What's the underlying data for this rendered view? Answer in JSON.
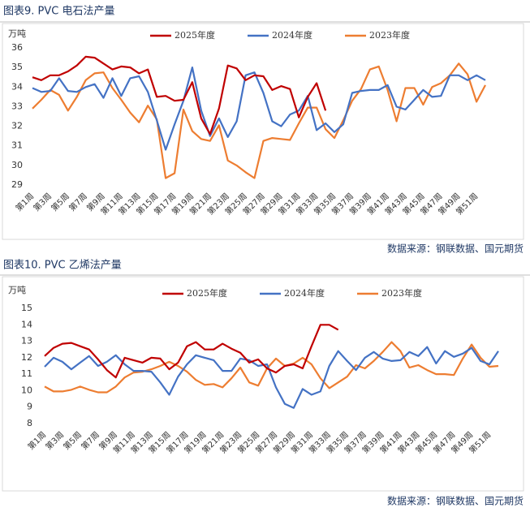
{
  "chart_data": [
    {
      "type": "line",
      "title": "图表9. PVC 电石法产量",
      "y_label": "万吨",
      "source": "数据来源：钢联数据、国元期货",
      "categories": [
        "第1周",
        null,
        "第3周",
        null,
        "第5周",
        null,
        "第7周",
        null,
        "第9周",
        null,
        "第11周",
        null,
        "第13周",
        null,
        "第15周",
        null,
        "第17周",
        null,
        "第19周",
        null,
        "第21周",
        null,
        "第23周",
        null,
        "第25周",
        null,
        "第27周",
        null,
        "第29周",
        null,
        "第31周",
        null,
        "第33周",
        null,
        "第35周",
        null,
        "第37周",
        null,
        "第39周",
        null,
        "第41周",
        null,
        "第43周",
        null,
        "第45周",
        null,
        "第47周",
        null,
        "第49周",
        null,
        "第51周",
        null
      ],
      "ylim": [
        29,
        36
      ],
      "yticks": [
        29,
        30,
        31,
        32,
        33,
        34,
        35,
        36
      ],
      "series": [
        {
          "name": "2025年度",
          "color": "#c00000",
          "values": [
            34.5,
            34.35,
            34.6,
            34.6,
            34.8,
            35.1,
            35.55,
            35.5,
            35.2,
            34.9,
            35.05,
            35.0,
            34.7,
            34.9,
            33.5,
            33.55,
            33.3,
            33.35,
            34.25,
            32.4,
            31.6,
            32.9,
            35.1,
            34.95,
            34.35,
            34.6,
            34.55,
            33.85,
            34.05,
            33.9,
            32.45,
            33.5,
            34.2,
            32.8,
            null,
            null,
            null,
            null,
            null,
            null,
            null,
            null,
            null,
            null,
            null,
            null,
            null,
            null,
            null,
            null,
            null,
            null
          ]
        },
        {
          "name": "2024年度",
          "color": "#4472c4",
          "values": [
            33.95,
            33.75,
            33.8,
            34.45,
            33.8,
            33.75,
            34.0,
            34.15,
            33.45,
            34.45,
            33.55,
            34.45,
            34.55,
            33.75,
            32.3,
            30.8,
            32.1,
            33.3,
            35.0,
            32.8,
            31.5,
            32.4,
            31.45,
            32.25,
            34.6,
            34.75,
            33.7,
            32.25,
            32.0,
            32.6,
            32.8,
            33.55,
            31.8,
            32.15,
            31.7,
            32.1,
            33.7,
            33.8,
            33.85,
            33.85,
            34.1,
            33.0,
            32.85,
            33.35,
            33.85,
            33.5,
            33.55,
            34.6,
            34.6,
            34.35,
            34.6,
            34.35
          ]
        },
        {
          "name": "2023年度",
          "color": "#ed7d31",
          "values": [
            32.9,
            33.35,
            33.85,
            33.6,
            32.8,
            33.5,
            34.35,
            34.7,
            34.75,
            33.95,
            33.35,
            32.7,
            32.2,
            33.05,
            32.35,
            29.35,
            29.6,
            32.85,
            31.75,
            31.35,
            31.25,
            32.05,
            30.25,
            30.0,
            29.65,
            29.35,
            31.25,
            31.4,
            31.35,
            31.3,
            32.15,
            32.95,
            32.95,
            31.85,
            31.4,
            32.3,
            33.3,
            33.9,
            34.9,
            35.05,
            33.85,
            32.25,
            33.95,
            33.95,
            33.1,
            34.0,
            34.2,
            34.6,
            35.2,
            34.65,
            33.25,
            34.1
          ]
        }
      ]
    },
    {
      "type": "line",
      "title": "图表10. PVC 乙烯法产量",
      "y_label": "万吨",
      "source": "数据来源：钢联数据、国元期货",
      "categories": [
        "第1周",
        null,
        "第3周",
        null,
        "第5周",
        null,
        "第7周",
        null,
        "第9周",
        null,
        "第11周",
        null,
        "第13周",
        null,
        "第15周",
        null,
        "第17周",
        null,
        "第19周",
        null,
        "第21周",
        null,
        "第23周",
        null,
        "第25周",
        null,
        "第27周",
        null,
        "第29周",
        null,
        "第31周",
        null,
        "第33周",
        null,
        "第35周",
        null,
        "第37周",
        null,
        "第39周",
        null,
        "第41周",
        null,
        "第43周",
        null,
        "第45周",
        null,
        "第47周",
        null,
        "第49周",
        null,
        "第51周",
        null
      ],
      "ylim": [
        8,
        15
      ],
      "yticks": [
        8,
        9,
        10,
        11,
        12,
        13,
        14,
        15
      ],
      "series": [
        {
          "name": "2025年度",
          "color": "#c00000",
          "values": [
            12.1,
            12.6,
            12.85,
            12.9,
            12.7,
            12.5,
            11.9,
            11.25,
            10.8,
            12.0,
            11.85,
            11.7,
            12.0,
            11.95,
            11.3,
            11.7,
            12.7,
            12.95,
            12.5,
            12.5,
            12.85,
            12.55,
            12.3,
            11.7,
            11.9,
            11.35,
            11.1,
            11.5,
            11.6,
            11.35,
            12.7,
            14.0,
            14.0,
            13.7,
            null,
            null,
            null,
            null,
            null,
            null,
            null,
            null,
            null,
            null,
            null,
            null,
            null,
            null,
            null,
            null,
            null,
            null
          ]
        },
        {
          "name": "2024年度",
          "color": "#4472c4",
          "values": [
            11.45,
            12.0,
            11.75,
            11.3,
            11.7,
            12.1,
            11.5,
            11.75,
            12.15,
            11.6,
            11.2,
            11.2,
            11.15,
            10.5,
            9.75,
            10.85,
            11.6,
            12.15,
            12.0,
            11.85,
            11.2,
            11.2,
            11.95,
            11.85,
            11.5,
            11.6,
            10.2,
            9.2,
            8.95,
            10.1,
            9.75,
            9.95,
            11.5,
            12.4,
            11.8,
            11.25,
            12.0,
            12.35,
            11.95,
            11.8,
            11.85,
            12.35,
            12.1,
            12.65,
            11.65,
            12.4,
            12.05,
            12.25,
            12.6,
            11.8,
            11.6,
            12.4
          ]
        },
        {
          "name": "2023年度",
          "color": "#ed7d31",
          "values": [
            10.25,
            9.95,
            9.95,
            10.05,
            10.25,
            10.05,
            9.9,
            9.9,
            10.25,
            10.8,
            11.1,
            11.15,
            11.3,
            11.5,
            11.75,
            11.5,
            11.15,
            10.65,
            10.35,
            10.4,
            10.2,
            10.75,
            11.4,
            10.5,
            10.3,
            11.35,
            11.95,
            11.5,
            11.65,
            12.0,
            11.6,
            10.75,
            10.15,
            10.5,
            10.85,
            11.55,
            11.35,
            11.8,
            12.35,
            12.95,
            12.4,
            11.4,
            11.55,
            11.25,
            11.0,
            11.0,
            10.95,
            11.95,
            12.8,
            12.0,
            11.45,
            11.5
          ]
        }
      ]
    }
  ]
}
